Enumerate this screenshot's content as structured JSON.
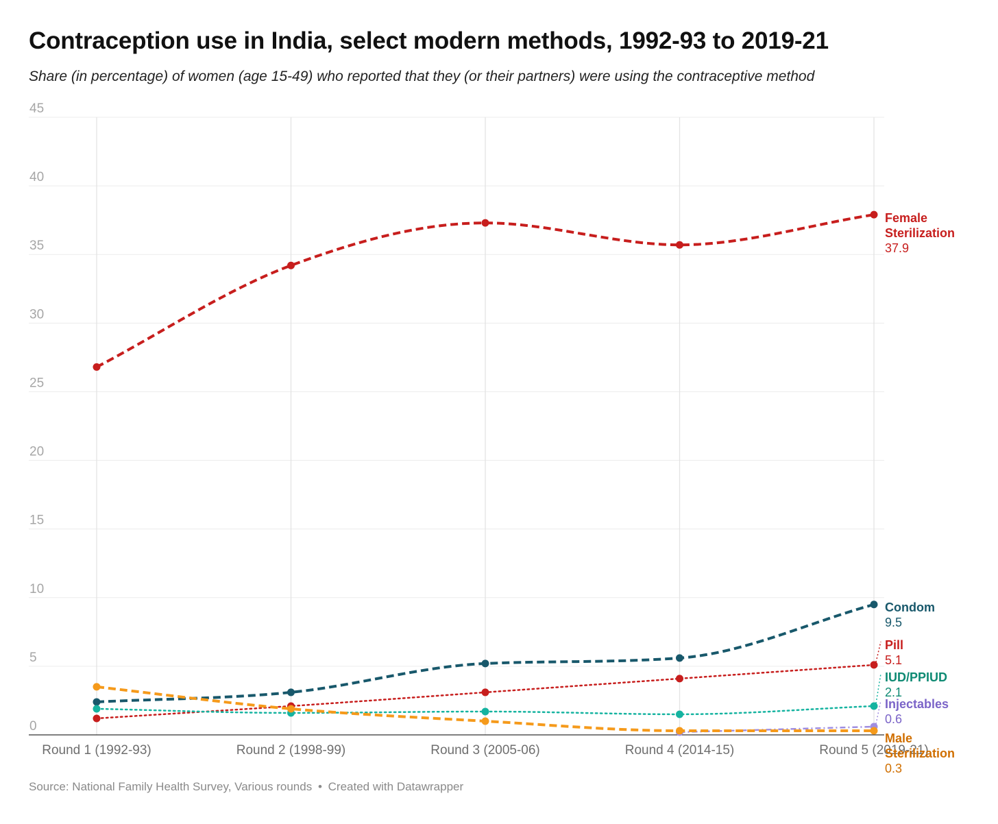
{
  "title": "Contraception use in India, select modern methods, 1992-93 to 2019-21",
  "subtitle": "Share (in percentage) of women (age 15-49) who reported that they (or their partners) were using the contraceptive method",
  "footer": {
    "source": "Source: National Family Health Survey, Various rounds",
    "separator": "•",
    "credit": "Created with Datawrapper"
  },
  "chart_data": {
    "type": "line",
    "categories": [
      "Round 1 (1992-93)",
      "Round 2 (1998-99)",
      "Round 3 (2005-06)",
      "Round 4 (2014-15)",
      "Round 5 (2019-21)"
    ],
    "ylim": [
      0,
      45
    ],
    "yticks": [
      0,
      5,
      10,
      15,
      20,
      25,
      30,
      35,
      40,
      45
    ],
    "grid": true,
    "legend": "direct labels at line ends",
    "series": [
      {
        "name": "Female Sterilization",
        "label_lines": [
          "Female",
          "Sterilization"
        ],
        "end_label": "37.9",
        "values": [
          26.8,
          34.2,
          37.3,
          35.7,
          37.9
        ],
        "color": "#c71e1d",
        "style": "dashed"
      },
      {
        "name": "Condom",
        "label_lines": [
          "Condom"
        ],
        "end_label": "9.5",
        "values": [
          2.4,
          3.1,
          5.2,
          5.6,
          9.5
        ],
        "color": "#18586b",
        "style": "dashed"
      },
      {
        "name": "Pill",
        "label_lines": [
          "Pill"
        ],
        "end_label": "5.1",
        "values": [
          1.2,
          2.1,
          3.1,
          4.1,
          5.1
        ],
        "color": "#c71e1d",
        "style": "dotted"
      },
      {
        "name": "IUD/PPIUD",
        "label_lines": [
          "IUD/PPIUD"
        ],
        "end_label": "2.1",
        "values": [
          1.9,
          1.6,
          1.7,
          1.5,
          2.1
        ],
        "color": "#15b3a0",
        "label_color": "#0e8a73",
        "style": "dotted"
      },
      {
        "name": "Injectables",
        "label_lines": [
          "Injectables"
        ],
        "end_label": "0.6",
        "values": [
          null,
          null,
          null,
          0.2,
          0.6
        ],
        "color": "#a08ee0",
        "label_color": "#7b64c8",
        "style": "dashdot"
      },
      {
        "name": "Male Sterilization",
        "label_lines": [
          "Male",
          "Sterilization"
        ],
        "end_label": "0.3",
        "values": [
          3.5,
          1.9,
          1.0,
          0.3,
          0.3
        ],
        "color": "#f59a1b",
        "label_color": "#d06f00",
        "style": "dashed"
      }
    ]
  }
}
